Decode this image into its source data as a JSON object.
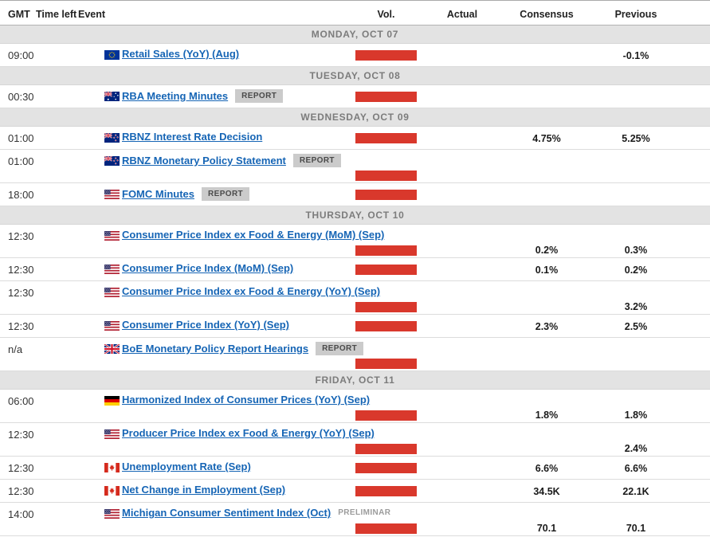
{
  "colors": {
    "accent_red": "#d9382c",
    "link_blue": "#1665b5",
    "separator_bg": "#e3e3e3",
    "badge_bg": "#cbcbcb"
  },
  "header": {
    "gmt": "GMT",
    "time_left": "Time left",
    "event": "Event",
    "vol": "Vol.",
    "actual": "Actual",
    "consensus": "Consensus",
    "previous": "Previous"
  },
  "days": [
    {
      "label": "MONDAY, OCT 07",
      "events": [
        {
          "time": "09:00",
          "country": "EU",
          "event": "Retail Sales (YoY) (Aug)",
          "badge": "",
          "vol": "high",
          "actual": "",
          "consensus": "",
          "previous": "-0.1%"
        }
      ]
    },
    {
      "label": "TUESDAY, OCT 08",
      "events": [
        {
          "time": "00:30",
          "country": "AU",
          "event": "RBA Meeting Minutes",
          "badge": "REPORT",
          "vol": "high",
          "actual": "",
          "consensus": "",
          "previous": ""
        }
      ]
    },
    {
      "label": "WEDNESDAY, OCT 09",
      "events": [
        {
          "time": "01:00",
          "country": "NZ",
          "event": "RBNZ Interest Rate Decision",
          "badge": "",
          "vol": "high",
          "actual": "",
          "consensus": "4.75%",
          "previous": "5.25%"
        },
        {
          "time": "01:00",
          "country": "NZ",
          "event": "RBNZ Monetary Policy Statement",
          "badge": "REPORT",
          "vol": "high",
          "actual": "",
          "consensus": "",
          "previous": ""
        },
        {
          "time": "18:00",
          "country": "US",
          "event": "FOMC Minutes",
          "badge": "REPORT",
          "vol": "high",
          "actual": "",
          "consensus": "",
          "previous": ""
        }
      ]
    },
    {
      "label": "THURSDAY, OCT 10",
      "events": [
        {
          "time": "12:30",
          "country": "US",
          "event": "Consumer Price Index ex Food & Energy (MoM) (Sep)",
          "badge": "",
          "vol": "high",
          "actual": "",
          "consensus": "0.2%",
          "previous": "0.3%"
        },
        {
          "time": "12:30",
          "country": "US",
          "event": "Consumer Price Index (MoM) (Sep)",
          "badge": "",
          "vol": "high",
          "actual": "",
          "consensus": "0.1%",
          "previous": "0.2%"
        },
        {
          "time": "12:30",
          "country": "US",
          "event": "Consumer Price Index ex Food & Energy (YoY) (Sep)",
          "badge": "",
          "vol": "high",
          "actual": "",
          "consensus": "",
          "previous": "3.2%"
        },
        {
          "time": "12:30",
          "country": "US",
          "event": "Consumer Price Index (YoY) (Sep)",
          "badge": "",
          "vol": "high",
          "actual": "",
          "consensus": "2.3%",
          "previous": "2.5%"
        },
        {
          "time": "n/a",
          "country": "GB",
          "event": "BoE Monetary Policy Report Hearings",
          "badge": "REPORT",
          "vol": "high",
          "actual": "",
          "consensus": "",
          "previous": ""
        }
      ]
    },
    {
      "label": "FRIDAY, OCT 11",
      "events": [
        {
          "time": "06:00",
          "country": "DE",
          "event": "Harmonized Index of Consumer Prices (YoY) (Sep)",
          "badge": "",
          "vol": "high",
          "actual": "",
          "consensus": "1.8%",
          "previous": "1.8%"
        },
        {
          "time": "12:30",
          "country": "US",
          "event": "Producer Price Index ex Food & Energy (YoY) (Sep)",
          "badge": "",
          "vol": "high",
          "actual": "",
          "consensus": "",
          "previous": "2.4%"
        },
        {
          "time": "12:30",
          "country": "CA",
          "event": "Unemployment Rate (Sep)",
          "badge": "",
          "vol": "high",
          "actual": "",
          "consensus": "6.6%",
          "previous": "6.6%"
        },
        {
          "time": "12:30",
          "country": "CA",
          "event": "Net Change in Employment (Sep)",
          "badge": "",
          "vol": "high",
          "actual": "",
          "consensus": "34.5K",
          "previous": "22.1K"
        },
        {
          "time": "14:00",
          "country": "US",
          "event": "Michigan Consumer Sentiment Index (Oct)",
          "badge": "PRELIMINAR",
          "vol": "high",
          "actual": "",
          "consensus": "70.1",
          "previous": "70.1"
        }
      ]
    }
  ],
  "badge_labels": {
    "report": "REPORT",
    "preliminary": "PRELIMINAR"
  }
}
